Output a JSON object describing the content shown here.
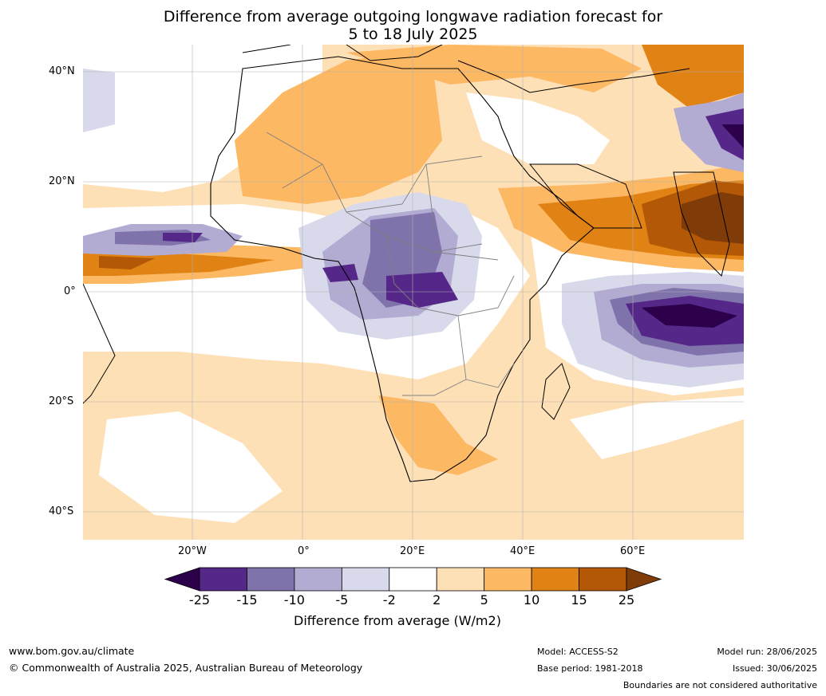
{
  "title": {
    "line1": "Difference from average outgoing longwave radiation forecast for",
    "line2": "5 to 18 July 2025"
  },
  "map": {
    "lat_labels": [
      "40°N",
      "20°N",
      "0°",
      "20°S",
      "40°S"
    ],
    "lon_labels": [
      "20°W",
      "0°",
      "20°E",
      "40°E",
      "60°E"
    ]
  },
  "colorbar": {
    "ticks": [
      "-25",
      "-15",
      "-10",
      "-5",
      "-2",
      "2",
      "5",
      "10",
      "15",
      "25"
    ],
    "colors": [
      "#2d004b",
      "#542788",
      "#8073ac",
      "#b2abd2",
      "#d8daeb",
      "#ffffff",
      "#fee0b6",
      "#fdb863",
      "#e08214",
      "#b35806",
      "#7f3b08"
    ],
    "label": "Difference from average (W/m2)"
  },
  "footer": {
    "website": "www.bom.gov.au/climate",
    "copyright": "© Commonwealth of Australia 2025, Australian Bureau of Meteorology",
    "model": "Model: ACCESS-S2",
    "base_period": "Base period: 1981-2018",
    "model_run": "Model run: 28/06/2025",
    "issued": "Issued: 30/06/2025",
    "disclaimer": "Boundaries are not considered authoritative"
  }
}
